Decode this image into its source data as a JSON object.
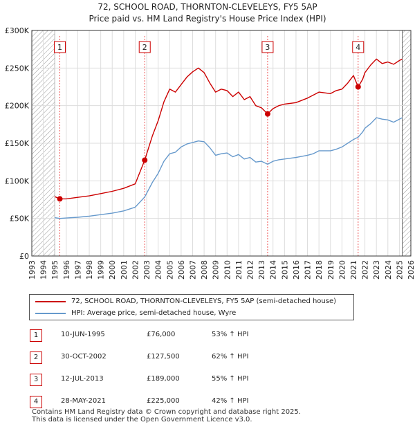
{
  "title": {
    "line1": "72, SCHOOL ROAD, THORNTON-CLEVELEYS, FY5 5AP",
    "line2": "Price paid vs. HM Land Registry's House Price Index (HPI)"
  },
  "colors": {
    "price_line": "#cc0000",
    "hpi_line": "#6699cc",
    "grid": "#dddddd",
    "marker_line": "#ee5555",
    "hatch": "#999999"
  },
  "chart_data": {
    "type": "line",
    "title": "Price paid vs. HM Land Registry's House Price Index (HPI)",
    "xlabel": "",
    "ylabel": "",
    "xlim": [
      1993,
      2026
    ],
    "ylim": [
      0,
      300000
    ],
    "data_start": 1995.0,
    "data_end": 2025.25,
    "yticks": [
      0,
      50000,
      100000,
      150000,
      200000,
      250000,
      300000
    ],
    "ytick_labels": [
      "£0",
      "£50K",
      "£100K",
      "£150K",
      "£200K",
      "£250K",
      "£300K"
    ],
    "xticks": [
      1993,
      1994,
      1995,
      1996,
      1997,
      1998,
      1999,
      2000,
      2001,
      2002,
      2003,
      2004,
      2005,
      2006,
      2007,
      2008,
      2009,
      2010,
      2011,
      2012,
      2013,
      2014,
      2015,
      2016,
      2017,
      2018,
      2019,
      2020,
      2021,
      2022,
      2023,
      2024,
      2025,
      2026
    ],
    "xtick_labels": [
      "1993",
      "1994",
      "1995",
      "1996",
      "1997",
      "1998",
      "1999",
      "2000",
      "2001",
      "2002",
      "2003",
      "2004",
      "2005",
      "2006",
      "2007",
      "2008",
      "2009",
      "2010",
      "2011",
      "2012",
      "2013",
      "2014",
      "2015",
      "2016",
      "2017",
      "2018",
      "2019",
      "2020",
      "2021",
      "2022",
      "2023",
      "2024",
      "2025",
      "2026"
    ],
    "series": [
      {
        "name": "72, SCHOOL ROAD, THORNTON-CLEVELEYS, FY5 5AP (semi-detached house)",
        "color": "#cc0000",
        "x": [
          1995.0,
          1995.44,
          1996,
          1997,
          1998,
          1999,
          2000,
          2001,
          2002,
          2002.83,
          2003.5,
          2004,
          2004.5,
          2005,
          2005.5,
          2006,
          2006.5,
          2007,
          2007.5,
          2008,
          2008.5,
          2009,
          2009.5,
          2010,
          2010.5,
          2011,
          2011.5,
          2012,
          2012.5,
          2013,
          2013.53,
          2014,
          2014.5,
          2015,
          2016,
          2017,
          2017.5,
          2018,
          2019,
          2019.5,
          2020,
          2020.5,
          2021,
          2021.41,
          2021.8,
          2022,
          2022.5,
          2023,
          2023.5,
          2024,
          2024.5,
          2025,
          2025.25
        ],
        "values": [
          79000,
          76000,
          76000,
          78000,
          80000,
          83000,
          86000,
          90000,
          96000,
          127500,
          160000,
          180000,
          205000,
          222000,
          218000,
          228000,
          238000,
          245000,
          250000,
          244000,
          230000,
          218000,
          222000,
          220000,
          212000,
          218000,
          208000,
          212000,
          200000,
          197000,
          189000,
          196000,
          200000,
          202000,
          204000,
          210000,
          214000,
          218000,
          216000,
          220000,
          222000,
          230000,
          240000,
          225000,
          235000,
          244000,
          254000,
          262000,
          256000,
          258000,
          255000,
          260000,
          262000
        ]
      },
      {
        "name": "HPI: Average price, semi-detached house, Wyre",
        "color": "#6699cc",
        "x": [
          1995.0,
          1995.44,
          1996,
          1997,
          1998,
          1999,
          2000,
          2001,
          2002,
          2002.83,
          2003.5,
          2004,
          2004.5,
          2005,
          2005.5,
          2006,
          2006.5,
          2007,
          2007.5,
          2008,
          2008.5,
          2009,
          2009.5,
          2010,
          2010.5,
          2011,
          2011.5,
          2012,
          2012.5,
          2013,
          2013.53,
          2014,
          2014.5,
          2015,
          2016,
          2017,
          2017.5,
          2018,
          2019,
          2019.5,
          2020,
          2020.5,
          2021,
          2021.41,
          2021.8,
          2022,
          2022.5,
          2023,
          2023.5,
          2024,
          2024.5,
          2025,
          2025.25
        ],
        "values": [
          51000,
          50000,
          50500,
          51500,
          53000,
          55000,
          57000,
          60000,
          65000,
          78500,
          98000,
          110000,
          126000,
          136000,
          138000,
          145000,
          149000,
          151000,
          153000,
          152000,
          144000,
          134000,
          136000,
          137000,
          132000,
          135000,
          129000,
          131000,
          125000,
          126000,
          122000,
          126000,
          128000,
          129000,
          131000,
          134000,
          136000,
          140000,
          140000,
          142000,
          145000,
          150000,
          155000,
          158000,
          165000,
          170000,
          176000,
          184000,
          182000,
          181000,
          178000,
          182000,
          184000
        ]
      }
    ],
    "sale_markers": [
      {
        "num": "1",
        "x": 1995.44,
        "value": 76000
      },
      {
        "num": "2",
        "x": 2002.83,
        "value": 127500
      },
      {
        "num": "3",
        "x": 2013.53,
        "value": 189000
      },
      {
        "num": "4",
        "x": 2021.41,
        "value": 225000
      }
    ]
  },
  "legend": {
    "price_label": "72, SCHOOL ROAD, THORNTON-CLEVELEYS, FY5 5AP (semi-detached house)",
    "hpi_label": "HPI: Average price, semi-detached house, Wyre"
  },
  "sales": [
    {
      "num": "1",
      "date": "10-JUN-1995",
      "price": "£76,000",
      "hpi": "53% ↑ HPI"
    },
    {
      "num": "2",
      "date": "30-OCT-2002",
      "price": "£127,500",
      "hpi": "62% ↑ HPI"
    },
    {
      "num": "3",
      "date": "12-JUL-2013",
      "price": "£189,000",
      "hpi": "55% ↑ HPI"
    },
    {
      "num": "4",
      "date": "28-MAY-2021",
      "price": "£225,000",
      "hpi": "42% ↑ HPI"
    }
  ],
  "footer": {
    "line1": "Contains HM Land Registry data © Crown copyright and database right 2025.",
    "line2": "This data is licensed under the Open Government Licence v3.0."
  }
}
